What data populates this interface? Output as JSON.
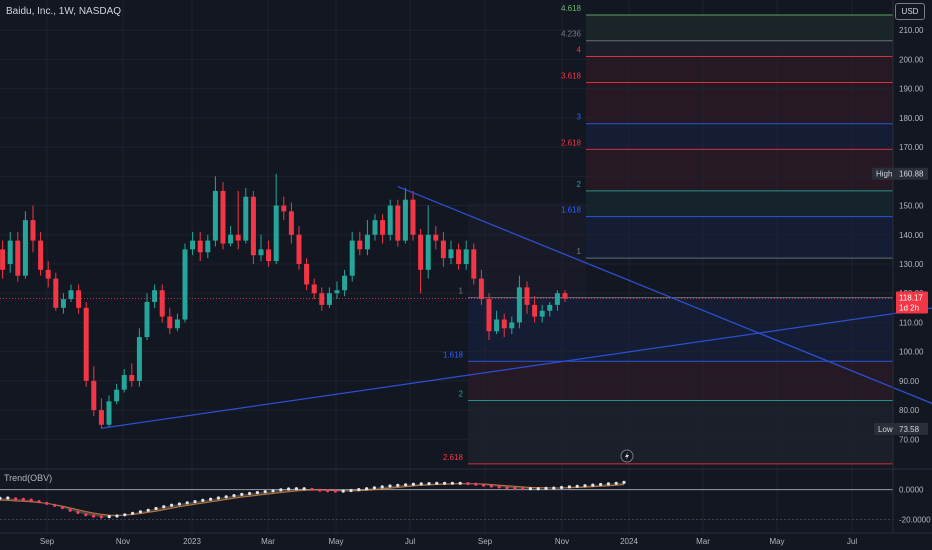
{
  "header": {
    "symbol_title": "Baidu, Inc., 1W, NASDAQ",
    "currency": "USD"
  },
  "oscillator": {
    "title": "Trend(OBV)"
  },
  "price_axis": {
    "ticks": [
      210,
      200,
      190,
      180,
      170,
      160,
      150,
      140,
      130,
      120,
      110,
      100,
      90,
      80,
      70
    ],
    "tick_labels": [
      "210.00",
      "200.00",
      "190.00",
      "180.00",
      "170.00",
      "160.00",
      "150.00",
      "140.00",
      "130.00",
      "120.00",
      "110.00",
      "100.00",
      "90.00",
      "80.00",
      "70.00"
    ],
    "high_badge": {
      "label": "High",
      "value": "160.88"
    },
    "low_badge": {
      "label": "Low",
      "value": "73.58"
    },
    "last_price": "118.17",
    "countdown": "1d 2h"
  },
  "osc_axis": {
    "tick_labels": [
      "0.0000",
      "-20.0000"
    ]
  },
  "time_axis": {
    "labels": [
      "Sep",
      "Nov",
      "2023",
      "Mar",
      "May",
      "Jul",
      "Sep",
      "Nov",
      "2024",
      "Mar",
      "May",
      "Jul"
    ]
  },
  "fib_upper": [
    {
      "label": "4.618",
      "price": 215.2,
      "color": "#66bb6a"
    },
    {
      "label": "4.236",
      "price": 206.4,
      "color": "#787b86"
    },
    {
      "label": "4",
      "price": 201.0,
      "color": "#f23645"
    },
    {
      "label": "3.618",
      "price": 192.1,
      "color": "#f23645"
    },
    {
      "label": "3",
      "price": 178.0,
      "color": "#2962ff"
    },
    {
      "label": "2.618",
      "price": 169.2,
      "color": "#f23645"
    },
    {
      "label": "2",
      "price": 155.0,
      "color": "#26a69a"
    },
    {
      "label": "1.618",
      "price": 146.2,
      "color": "#2962ff"
    },
    {
      "label": "1",
      "price": 132.0,
      "color": "#787b86"
    }
  ],
  "fib_lower": [
    {
      "label": "1",
      "price": 118.5,
      "color": "#787b86"
    },
    {
      "label": "1.618",
      "price": 96.7,
      "color": "#2962ff"
    },
    {
      "label": "2",
      "price": 83.3,
      "color": "#26a69a"
    },
    {
      "label": "2.618",
      "price": 61.6,
      "color": "#f23645"
    }
  ],
  "chart_data": {
    "type": "candlestick",
    "timeframe": "1W",
    "ylim": [
      63,
      217
    ],
    "candles": [
      [
        138,
        135,
        142,
        131
      ],
      [
        135,
        128,
        138,
        125
      ],
      [
        130,
        138,
        141,
        127
      ],
      [
        138,
        126,
        141,
        124
      ],
      [
        126,
        145,
        148,
        125
      ],
      [
        145,
        138,
        150,
        134
      ],
      [
        138,
        128,
        141,
        126
      ],
      [
        128,
        125,
        131,
        122
      ],
      [
        125,
        115,
        127,
        114
      ],
      [
        115,
        118,
        120,
        113
      ],
      [
        118,
        121,
        123,
        117
      ],
      [
        121,
        115,
        123,
        113
      ],
      [
        115,
        90,
        117,
        88
      ],
      [
        90,
        80,
        95,
        78
      ],
      [
        80,
        75,
        84,
        73.58
      ],
      [
        75,
        83,
        85,
        74
      ],
      [
        83,
        87,
        89,
        82
      ],
      [
        87,
        92,
        94,
        86
      ],
      [
        92,
        90,
        96,
        88
      ],
      [
        90,
        105,
        108,
        88
      ],
      [
        105,
        117,
        120,
        104
      ],
      [
        117,
        121,
        123,
        115
      ],
      [
        121,
        112,
        123,
        110
      ],
      [
        112,
        108,
        115,
        106
      ],
      [
        108,
        111,
        113,
        107
      ],
      [
        111,
        135,
        137,
        110
      ],
      [
        135,
        138,
        141,
        133
      ],
      [
        138,
        134,
        141,
        131
      ],
      [
        134,
        138,
        140,
        132
      ],
      [
        138,
        155,
        160,
        136
      ],
      [
        155,
        137,
        158,
        135
      ],
      [
        137,
        140,
        143,
        136
      ],
      [
        140,
        138,
        155,
        135
      ],
      [
        138,
        153,
        156,
        137
      ],
      [
        153,
        133,
        155,
        130
      ],
      [
        133,
        135,
        140,
        131
      ],
      [
        135,
        131,
        138,
        129
      ],
      [
        131,
        150,
        160.88,
        130
      ],
      [
        150,
        148,
        153,
        145
      ],
      [
        148,
        140,
        151,
        137
      ],
      [
        140,
        130,
        143,
        128
      ],
      [
        130,
        123,
        132,
        121
      ],
      [
        123,
        120,
        125,
        118
      ],
      [
        120,
        116,
        122,
        114
      ],
      [
        116,
        120,
        122,
        115
      ],
      [
        120,
        121,
        124,
        118
      ],
      [
        121,
        126,
        128,
        119
      ],
      [
        126,
        138,
        141,
        124
      ],
      [
        138,
        135,
        141,
        133
      ],
      [
        135,
        140,
        145,
        133
      ],
      [
        140,
        145,
        147,
        138
      ],
      [
        145,
        140,
        147,
        137
      ],
      [
        140,
        150,
        152,
        138
      ],
      [
        150,
        138,
        152,
        136
      ],
      [
        138,
        152,
        156,
        137
      ],
      [
        152,
        140,
        155,
        138
      ],
      [
        140,
        128,
        142,
        120
      ],
      [
        128,
        140,
        150,
        125
      ],
      [
        140,
        138,
        143,
        135
      ],
      [
        138,
        132,
        141,
        129
      ],
      [
        132,
        135,
        138,
        130
      ],
      [
        135,
        130,
        137,
        128
      ],
      [
        130,
        135,
        138,
        128
      ],
      [
        135,
        125,
        137,
        123
      ],
      [
        125,
        118,
        128,
        116
      ],
      [
        118,
        107,
        120,
        104
      ],
      [
        107,
        111,
        114,
        106
      ],
      [
        111,
        108,
        113,
        105
      ],
      [
        108,
        110,
        112,
        106
      ],
      [
        110,
        122,
        126,
        108
      ],
      [
        122,
        116,
        124,
        113
      ],
      [
        116,
        112,
        119,
        110
      ],
      [
        112,
        114,
        116,
        110
      ],
      [
        114,
        116,
        117,
        112
      ],
      [
        116,
        120,
        121,
        114
      ],
      [
        120,
        118.17,
        121,
        117
      ]
    ],
    "trendlines": [
      {
        "name": "support",
        "from": {
          "i": 14,
          "price": 73.8
        },
        "to": {
          "i": 162,
          "price": 129.5
        }
      },
      {
        "name": "resistance",
        "from": {
          "i": 53,
          "price": 156.5
        },
        "to": {
          "i": 143,
          "price": 61.5
        }
      }
    ],
    "obv": [
      [
        -5.8,
        -7.0
      ],
      [
        -5.6,
        -7.2
      ],
      [
        -6.2,
        -7.6
      ],
      [
        -6.5,
        -7.8
      ],
      [
        -7.0,
        -8.2
      ],
      [
        -8.0,
        -8.6
      ],
      [
        -9.2,
        -9.2
      ],
      [
        -10.5,
        -10.0
      ],
      [
        -12.0,
        -11.0
      ],
      [
        -13.8,
        -12.2
      ],
      [
        -15.2,
        -13.4
      ],
      [
        -16.8,
        -14.6
      ],
      [
        -17.6,
        -15.6
      ],
      [
        -18.2,
        -16.4
      ],
      [
        -18.0,
        -17.0
      ],
      [
        -17.6,
        -17.2
      ],
      [
        -16.8,
        -17.0
      ],
      [
        -15.8,
        -16.6
      ],
      [
        -14.8,
        -16.0
      ],
      [
        -13.8,
        -15.2
      ],
      [
        -12.6,
        -14.4
      ],
      [
        -11.4,
        -13.4
      ],
      [
        -10.4,
        -12.4
      ],
      [
        -9.6,
        -11.4
      ],
      [
        -8.8,
        -10.6
      ],
      [
        -8.0,
        -9.8
      ],
      [
        -7.2,
        -9.0
      ],
      [
        -6.4,
        -8.2
      ],
      [
        -5.6,
        -7.4
      ],
      [
        -4.8,
        -6.6
      ],
      [
        -4.0,
        -5.8
      ],
      [
        -3.2,
        -5.0
      ],
      [
        -2.6,
        -4.4
      ],
      [
        -2.0,
        -3.8
      ],
      [
        -1.4,
        -3.2
      ],
      [
        -0.8,
        -2.6
      ],
      [
        -0.2,
        -2.0
      ],
      [
        0.4,
        -1.4
      ],
      [
        0.6,
        -0.9
      ],
      [
        0.6,
        -0.5
      ],
      [
        0.2,
        -0.3
      ],
      [
        -0.4,
        -0.3
      ],
      [
        -0.8,
        -0.4
      ],
      [
        -1.0,
        -0.6
      ],
      [
        -1.0,
        -0.8
      ],
      [
        -0.6,
        -0.9
      ],
      [
        0.0,
        -0.8
      ],
      [
        0.6,
        -0.5
      ],
      [
        1.2,
        -0.1
      ],
      [
        1.8,
        0.4
      ],
      [
        2.4,
        0.9
      ],
      [
        2.8,
        1.4
      ],
      [
        3.2,
        1.9
      ],
      [
        3.6,
        2.4
      ],
      [
        3.8,
        2.8
      ],
      [
        4.0,
        3.1
      ],
      [
        4.2,
        3.4
      ],
      [
        4.2,
        3.6
      ],
      [
        4.2,
        3.8
      ],
      [
        4.2,
        3.9
      ],
      [
        4.0,
        3.9
      ],
      [
        3.6,
        3.9
      ],
      [
        3.0,
        3.7
      ],
      [
        2.4,
        3.4
      ],
      [
        1.8,
        3.0
      ],
      [
        1.2,
        2.6
      ],
      [
        0.8,
        2.2
      ],
      [
        0.6,
        1.8
      ],
      [
        0.6,
        1.5
      ],
      [
        0.6,
        1.3
      ],
      [
        0.8,
        1.2
      ],
      [
        1.0,
        1.1
      ],
      [
        1.4,
        1.1
      ],
      [
        1.8,
        1.2
      ],
      [
        2.2,
        1.4
      ],
      [
        2.6,
        1.6
      ],
      [
        3.0,
        1.9
      ],
      [
        3.4,
        2.2
      ],
      [
        3.8,
        2.5
      ],
      [
        4.2,
        2.9
      ],
      [
        4.8,
        3.3
      ]
    ]
  }
}
